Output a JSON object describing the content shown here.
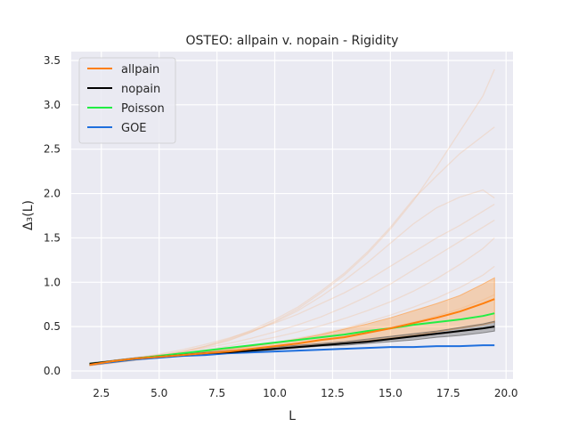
{
  "chart_data": {
    "type": "line",
    "title": "OSTEO: allpain v. nopain - Rigidity",
    "xlabel": "L",
    "ylabel": "Δ₃(L)",
    "xlim": [
      1.2,
      20.3
    ],
    "ylim": [
      -0.09,
      3.6
    ],
    "xticks": [
      2.5,
      5.0,
      7.5,
      10.0,
      12.5,
      15.0,
      17.5,
      20.0
    ],
    "xtick_labels": [
      "2.5",
      "5.0",
      "7.5",
      "10.0",
      "12.5",
      "15.0",
      "17.5",
      "20.0"
    ],
    "yticks": [
      0.0,
      0.5,
      1.0,
      1.5,
      2.0,
      2.5,
      3.0,
      3.5
    ],
    "ytick_labels": [
      "0.0",
      "0.5",
      "1.0",
      "1.5",
      "2.0",
      "2.5",
      "3.0",
      "3.5"
    ],
    "grid": true,
    "legend_position": "top-left",
    "background": "#eaeaf2",
    "x": [
      2,
      3,
      4,
      5,
      6,
      7,
      8,
      9,
      10,
      11,
      12,
      13,
      14,
      15,
      16,
      17,
      18,
      19,
      19.5
    ],
    "series": [
      {
        "name": "allpain",
        "color": "#ff7f0e",
        "values": [
          0.07,
          0.11,
          0.14,
          0.16,
          0.18,
          0.2,
          0.22,
          0.25,
          0.28,
          0.31,
          0.35,
          0.38,
          0.43,
          0.48,
          0.54,
          0.6,
          0.67,
          0.76,
          0.81
        ]
      },
      {
        "name": "nopain",
        "color": "#000000",
        "values": [
          0.08,
          0.11,
          0.14,
          0.16,
          0.18,
          0.2,
          0.21,
          0.23,
          0.25,
          0.27,
          0.29,
          0.31,
          0.33,
          0.36,
          0.39,
          0.42,
          0.45,
          0.48,
          0.5
        ]
      },
      {
        "name": "Poisson",
        "color": "#22ee44",
        "values": [
          0.08,
          0.11,
          0.14,
          0.17,
          0.2,
          0.23,
          0.26,
          0.29,
          0.32,
          0.35,
          0.38,
          0.41,
          0.45,
          0.48,
          0.52,
          0.55,
          0.58,
          0.62,
          0.65
        ]
      },
      {
        "name": "GOE",
        "color": "#1f6fdd",
        "values": [
          0.07,
          0.1,
          0.13,
          0.15,
          0.17,
          0.18,
          0.2,
          0.21,
          0.22,
          0.23,
          0.24,
          0.25,
          0.26,
          0.27,
          0.27,
          0.28,
          0.28,
          0.29,
          0.29
        ]
      }
    ],
    "bands": [
      {
        "series": "allpain",
        "color": "#ff9a3c",
        "opacity": 0.35,
        "lower": [
          0.06,
          0.1,
          0.13,
          0.15,
          0.17,
          0.19,
          0.21,
          0.23,
          0.25,
          0.27,
          0.29,
          0.31,
          0.34,
          0.37,
          0.4,
          0.44,
          0.48,
          0.52,
          0.55
        ],
        "upper": [
          0.08,
          0.12,
          0.15,
          0.18,
          0.2,
          0.22,
          0.25,
          0.28,
          0.32,
          0.36,
          0.41,
          0.47,
          0.53,
          0.6,
          0.68,
          0.76,
          0.85,
          0.98,
          1.05
        ]
      },
      {
        "series": "nopain",
        "color": "#555555",
        "opacity": 0.35,
        "lower": [
          0.07,
          0.1,
          0.13,
          0.15,
          0.17,
          0.19,
          0.2,
          0.22,
          0.24,
          0.26,
          0.28,
          0.29,
          0.31,
          0.33,
          0.35,
          0.38,
          0.4,
          0.43,
          0.45
        ],
        "upper": [
          0.09,
          0.12,
          0.15,
          0.17,
          0.19,
          0.21,
          0.23,
          0.25,
          0.27,
          0.29,
          0.31,
          0.33,
          0.36,
          0.39,
          0.42,
          0.45,
          0.49,
          0.53,
          0.56
        ]
      }
    ],
    "individual_traces": {
      "color": "#f5b380",
      "opacity": 0.28,
      "lines": [
        [
          0.06,
          0.09,
          0.12,
          0.16,
          0.21,
          0.27,
          0.34,
          0.44,
          0.56,
          0.7,
          0.88,
          1.08,
          1.32,
          1.6,
          1.92,
          2.3,
          2.7,
          3.1,
          3.4
        ],
        [
          0.07,
          0.1,
          0.13,
          0.17,
          0.22,
          0.28,
          0.36,
          0.46,
          0.58,
          0.72,
          0.9,
          1.1,
          1.34,
          1.62,
          1.94,
          2.2,
          2.45,
          2.65,
          2.75
        ],
        [
          0.06,
          0.09,
          0.13,
          0.17,
          0.22,
          0.28,
          0.35,
          0.44,
          0.55,
          0.68,
          0.84,
          1.02,
          1.22,
          1.44,
          1.66,
          1.84,
          1.96,
          2.04,
          1.95
        ],
        [
          0.08,
          0.11,
          0.15,
          0.19,
          0.24,
          0.3,
          0.37,
          0.45,
          0.54,
          0.64,
          0.76,
          0.88,
          1.02,
          1.18,
          1.34,
          1.5,
          1.64,
          1.8,
          1.88
        ],
        [
          0.07,
          0.1,
          0.14,
          0.18,
          0.22,
          0.26,
          0.31,
          0.37,
          0.44,
          0.52,
          0.61,
          0.72,
          0.84,
          0.98,
          1.14,
          1.3,
          1.46,
          1.62,
          1.7
        ],
        [
          0.07,
          0.1,
          0.13,
          0.16,
          0.2,
          0.24,
          0.28,
          0.33,
          0.38,
          0.44,
          0.51,
          0.59,
          0.68,
          0.78,
          0.9,
          1.04,
          1.2,
          1.38,
          1.5
        ],
        [
          0.06,
          0.09,
          0.12,
          0.15,
          0.18,
          0.21,
          0.24,
          0.28,
          0.32,
          0.37,
          0.42,
          0.48,
          0.55,
          0.63,
          0.72,
          0.82,
          0.94,
          1.08,
          1.18
        ],
        [
          0.07,
          0.1,
          0.13,
          0.15,
          0.17,
          0.2,
          0.22,
          0.25,
          0.28,
          0.31,
          0.35,
          0.39,
          0.44,
          0.49,
          0.55,
          0.62,
          0.7,
          0.8,
          0.86
        ]
      ]
    }
  }
}
